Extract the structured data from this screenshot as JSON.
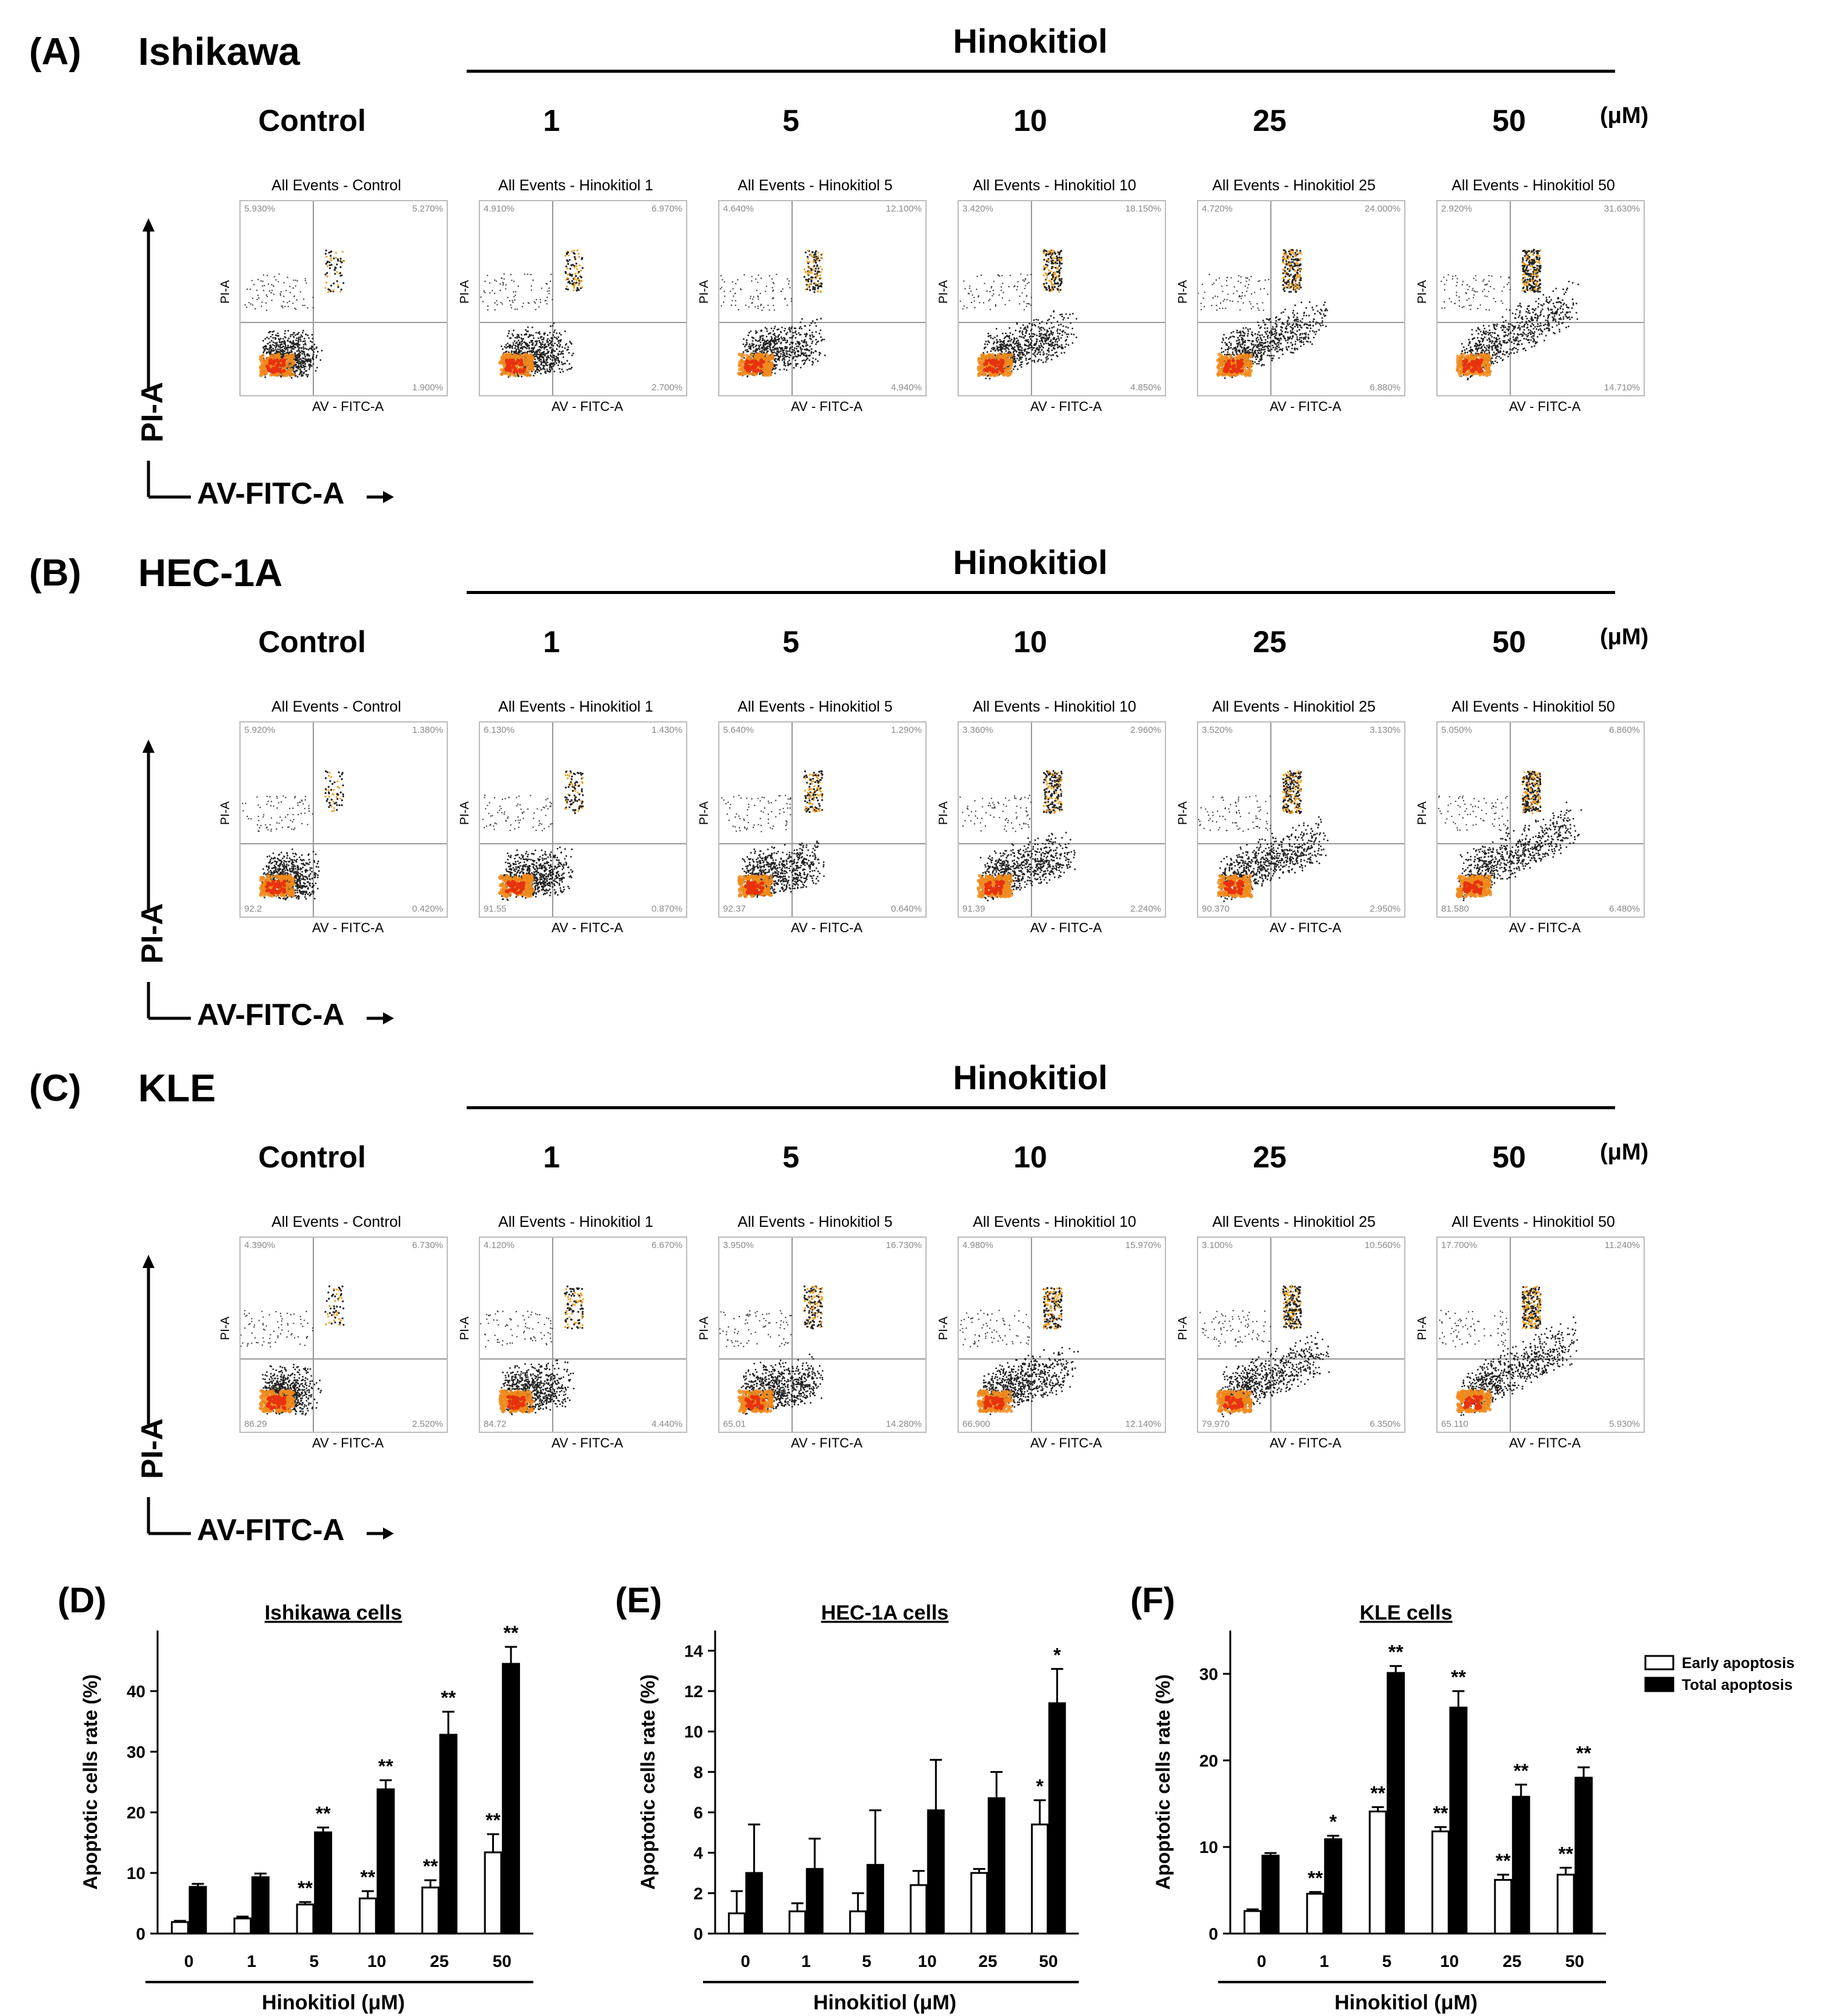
{
  "panels": [
    {
      "label": "(A)",
      "cell": "Ishikawa",
      "treatment": "Hinokitiol",
      "columns": [
        "Control",
        "1",
        "5",
        "10",
        "25",
        "50"
      ],
      "unit": "(μM)",
      "plots": [
        {
          "title": "All Events - Control",
          "ul": "5.930%",
          "ur": "5.270%",
          "lr": "1.900%",
          "ll": ""
        },
        {
          "title": "All Events - Hinokitiol 1",
          "ul": "4.910%",
          "ur": "6.970%",
          "lr": "2.700%",
          "ll": ""
        },
        {
          "title": "All Events - Hinokitiol 5",
          "ul": "4.640%",
          "ur": "12.100%",
          "lr": "4.940%",
          "ll": ""
        },
        {
          "title": "All Events - Hinokitiol 10",
          "ul": "3.420%",
          "ur": "18.150%",
          "lr": "4.850%",
          "ll": ""
        },
        {
          "title": "All Events - Hinokitiol 25",
          "ul": "4.720%",
          "ur": "24.000%",
          "lr": "6.880%",
          "ll": ""
        },
        {
          "title": "All Events - Hinokitiol 50",
          "ul": "2.920%",
          "ur": "31.630%",
          "lr": "14.710%",
          "ll": ""
        }
      ],
      "ylab": "PI-A",
      "xlab": "AV - FITC-A",
      "big_y": "PI-A",
      "big_x": "AV-FITC-A"
    },
    {
      "label": "(B)",
      "cell": "HEC-1A",
      "treatment": "Hinokitiol",
      "columns": [
        "Control",
        "1",
        "5",
        "10",
        "25",
        "50"
      ],
      "unit": "(μM)",
      "plots": [
        {
          "title": "All Events - Control",
          "ul": "5.920%",
          "ur": "1.380%",
          "lr": "0.420%",
          "ll": "92.2"
        },
        {
          "title": "All Events - Hinokitiol 1",
          "ul": "6.130%",
          "ur": "1.430%",
          "lr": "0.870%",
          "ll": "91.55"
        },
        {
          "title": "All Events - Hinokitiol 5",
          "ul": "5.640%",
          "ur": "1.290%",
          "lr": "0.640%",
          "ll": "92.37"
        },
        {
          "title": "All Events - Hinokitiol 10",
          "ul": "3.360%",
          "ur": "2.960%",
          "lr": "2.240%",
          "ll": "91.39"
        },
        {
          "title": "All Events - Hinokitiol 25",
          "ul": "3.520%",
          "ur": "3.130%",
          "lr": "2.950%",
          "ll": "90.370"
        },
        {
          "title": "All Events - Hinokitiol 50",
          "ul": "5.050%",
          "ur": "6.860%",
          "lr": "6.480%",
          "ll": "81.580"
        }
      ],
      "ylab": "PI-A",
      "xlab": "AV - FITC-A",
      "big_y": "PI-A",
      "big_x": "AV-FITC-A"
    },
    {
      "label": "(C)",
      "cell": "KLE",
      "treatment": "Hinokitiol",
      "columns": [
        "Control",
        "1",
        "5",
        "10",
        "25",
        "50"
      ],
      "unit": "(μM)",
      "plots": [
        {
          "title": "All Events - Control",
          "ul": "4.390%",
          "ur": "6.730%",
          "lr": "2.520%",
          "ll": "86.29"
        },
        {
          "title": "All Events - Hinokitiol 1",
          "ul": "4.120%",
          "ur": "6.670%",
          "lr": "4.440%",
          "ll": "84.72"
        },
        {
          "title": "All Events - Hinokitiol 5",
          "ul": "3.950%",
          "ur": "16.730%",
          "lr": "14.280%",
          "ll": "65.01"
        },
        {
          "title": "All Events - Hinokitiol 10",
          "ul": "4.980%",
          "ur": "15.970%",
          "lr": "12.140%",
          "ll": "66.900"
        },
        {
          "title": "All Events - Hinokitiol 25",
          "ul": "3.100%",
          "ur": "10.560%",
          "lr": "6.350%",
          "ll": "79.970"
        },
        {
          "title": "All Events - Hinokitiol 50",
          "ul": "17.700%",
          "ur": "11.240%",
          "lr": "5.930%",
          "ll": "65.110"
        }
      ],
      "ylab": "PI-A",
      "xlab": "AV - FITC-A",
      "big_y": "PI-A",
      "big_x": "AV-FITC-A"
    }
  ],
  "chart_data": [
    {
      "panel": "(D)",
      "type": "bar",
      "title": "Ishikawa cells",
      "xlabel": "Hinokitiol (μM)",
      "ylabel": "Apoptotic cells rate (%)",
      "categories": [
        "0",
        "1",
        "5",
        "10",
        "25",
        "50"
      ],
      "ylim": [
        0,
        50
      ],
      "yticks": [
        0,
        10,
        20,
        30,
        40
      ],
      "series": [
        {
          "name": "Early apoptosis",
          "values": [
            1.9,
            2.5,
            4.8,
            5.8,
            7.6,
            13.4
          ],
          "errors": [
            0.2,
            0.3,
            0.4,
            1.2,
            1.2,
            3.0
          ],
          "marks": [
            "",
            "",
            "**",
            "**",
            "**",
            "**"
          ]
        },
        {
          "name": "Total apoptosis",
          "values": [
            7.7,
            9.3,
            16.7,
            23.8,
            32.8,
            44.5
          ],
          "errors": [
            0.5,
            0.6,
            0.8,
            1.5,
            3.8,
            2.8
          ],
          "marks": [
            "",
            "",
            "**",
            "**",
            "**",
            "**"
          ]
        }
      ]
    },
    {
      "panel": "(E)",
      "type": "bar",
      "title": "HEC-1A cells",
      "xlabel": "Hinokitiol (μM)",
      "ylabel": "Apoptotic cells rate (%)",
      "categories": [
        "0",
        "1",
        "5",
        "10",
        "25",
        "50"
      ],
      "ylim": [
        0,
        15
      ],
      "yticks": [
        0,
        2,
        4,
        6,
        8,
        10,
        12,
        14
      ],
      "series": [
        {
          "name": "Early apoptosis",
          "values": [
            1.0,
            1.1,
            1.1,
            2.4,
            3.0,
            5.4
          ],
          "errors": [
            1.1,
            0.4,
            0.9,
            0.7,
            0.2,
            1.2
          ],
          "marks": [
            "",
            "",
            "",
            "",
            "",
            "*"
          ]
        },
        {
          "name": "Total apoptosis",
          "values": [
            3.0,
            3.2,
            3.4,
            6.1,
            6.7,
            11.4
          ],
          "errors": [
            2.4,
            1.5,
            2.7,
            2.5,
            1.3,
            1.7
          ],
          "marks": [
            "",
            "",
            "",
            "",
            "",
            "*"
          ]
        }
      ]
    },
    {
      "panel": "(F)",
      "type": "bar",
      "title": "KLE cells",
      "xlabel": "Hinokitiol (μM)",
      "ylabel": "Apoptotic cells rate (%)",
      "categories": [
        "0",
        "1",
        "5",
        "10",
        "25",
        "50"
      ],
      "ylim": [
        0,
        35
      ],
      "yticks": [
        0,
        10,
        20,
        30
      ],
      "legend": "top-right",
      "series": [
        {
          "name": "Early apoptosis",
          "values": [
            2.6,
            4.6,
            14.1,
            11.8,
            6.2,
            6.8
          ],
          "errors": [
            0.2,
            0.2,
            0.5,
            0.5,
            0.6,
            0.8
          ],
          "marks": [
            "",
            "**",
            "**",
            "**",
            "**",
            "**"
          ]
        },
        {
          "name": "Total apoptosis",
          "values": [
            9.0,
            10.9,
            30.1,
            26.1,
            15.8,
            18.0
          ],
          "errors": [
            0.3,
            0.4,
            0.8,
            1.9,
            1.4,
            1.2
          ],
          "marks": [
            "",
            "*",
            "**",
            "**",
            "**",
            "**"
          ]
        }
      ]
    }
  ]
}
